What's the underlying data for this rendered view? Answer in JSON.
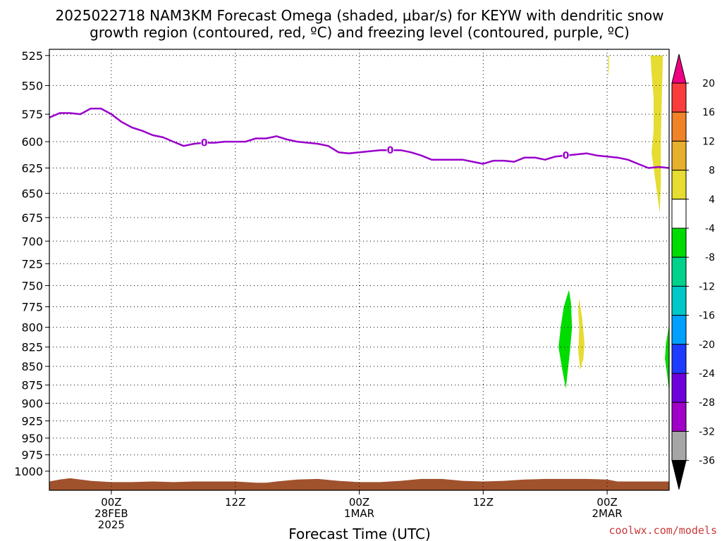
{
  "title_line1": "2025022718 NAM3KM Forecast Omega (shaded, μbar/s) for KEYW with dendritic snow",
  "title_line2": "growth region (contoured, red, ºC) and freezing level (contoured, purple, ºC)",
  "credit": "coolwx.com/models",
  "colors": {
    "freezing_level": "#9900cc",
    "terrain": "#a0522d",
    "grid": "#000000"
  },
  "chart_data": {
    "type": "area",
    "title": "2025022718 NAM3KM Forecast Omega (shaded, μbar/s) for KEYW with dendritic snow growth region (contoured, red, ºC) and freezing level (contoured, purple, ºC)",
    "xlabel": "Forecast Time (UTC)",
    "ylabel": "",
    "x_unit": "forecast hour from 2025-02-27 18Z",
    "xlim": [
      0,
      60
    ],
    "ylim": [
      1000,
      525
    ],
    "y_scale": "log (pressure, hPa)",
    "grid": true,
    "y_ticks": [
      525,
      550,
      575,
      600,
      625,
      650,
      675,
      700,
      725,
      750,
      775,
      800,
      825,
      850,
      875,
      900,
      925,
      950,
      975,
      1000
    ],
    "x_ticks": [
      {
        "x": 6,
        "lines": [
          "00Z",
          "28FEB",
          "2025"
        ]
      },
      {
        "x": 18,
        "lines": [
          "12Z"
        ]
      },
      {
        "x": 30,
        "lines": [
          "00Z",
          "1MAR"
        ]
      },
      {
        "x": 42,
        "lines": [
          "12Z"
        ]
      },
      {
        "x": 54,
        "lines": [
          "00Z",
          "2MAR"
        ]
      }
    ],
    "freezing_level": {
      "label": "0",
      "label_x": [
        15,
        33,
        50
      ],
      "x": [
        0,
        1,
        2,
        3,
        4,
        5,
        6,
        7,
        8,
        9,
        10,
        11,
        12,
        13,
        14,
        15,
        16,
        17,
        18,
        19,
        20,
        21,
        22,
        23,
        24,
        25,
        26,
        27,
        28,
        29,
        30,
        31,
        32,
        33,
        34,
        35,
        36,
        37,
        38,
        39,
        40,
        41,
        42,
        43,
        44,
        45,
        46,
        47,
        48,
        49,
        50,
        51,
        52,
        53,
        54,
        55,
        56,
        57,
        58,
        59,
        60
      ],
      "y": [
        578,
        574,
        574,
        575,
        570,
        570,
        575,
        582,
        587,
        590,
        594,
        596,
        600,
        604,
        602,
        601,
        601,
        600,
        600,
        600,
        597,
        597,
        595,
        598,
        600,
        601,
        602,
        604,
        610,
        611,
        610,
        609,
        608,
        608,
        608,
        610,
        613,
        617,
        617,
        617,
        617,
        619,
        621,
        618,
        618,
        619,
        615,
        615,
        617,
        614,
        613,
        612,
        611,
        613,
        614,
        615,
        617,
        621,
        625,
        624,
        625
      ]
    },
    "omega_levels": [
      -36,
      -32,
      -28,
      -24,
      -20,
      -16,
      -12,
      -8,
      -4,
      4,
      8,
      12,
      16,
      20
    ],
    "omega_colors": [
      "#a6a6a6",
      "#a000c8",
      "#6e00dc",
      "#1e3cff",
      "#00a0ff",
      "#00c8c8",
      "#00d28c",
      "#00dc00",
      "#ffffff",
      "#e6dc32",
      "#e6af2d",
      "#f08228",
      "#fa3c3c",
      "#f00082"
    ],
    "omega_regions": [
      {
        "name": "yellow",
        "color": "#e6dc32",
        "vertices": [
          [
            54.1,
            525
          ],
          [
            54.2,
            525
          ],
          [
            54.2,
            535
          ],
          [
            54.1,
            543
          ],
          [
            54.1,
            532
          ]
        ]
      },
      {
        "name": "yellow",
        "color": "#e6dc32",
        "vertices": [
          [
            58.2,
            525
          ],
          [
            59.4,
            525
          ],
          [
            59.3,
            560
          ],
          [
            59.2,
            600
          ],
          [
            59.2,
            640
          ],
          [
            59.1,
            670
          ],
          [
            58.9,
            655
          ],
          [
            58.5,
            625
          ],
          [
            58.3,
            610
          ],
          [
            58.5,
            590
          ],
          [
            58.5,
            560
          ],
          [
            58.3,
            540
          ]
        ]
      },
      {
        "name": "green",
        "color": "#00dc00",
        "vertices": [
          [
            50.3,
            755
          ],
          [
            50.5,
            770
          ],
          [
            50.6,
            800
          ],
          [
            50.4,
            830
          ],
          [
            50.2,
            855
          ],
          [
            50.0,
            880
          ],
          [
            49.6,
            850
          ],
          [
            49.3,
            825
          ],
          [
            49.5,
            800
          ],
          [
            49.8,
            775
          ]
        ]
      },
      {
        "name": "yellow",
        "color": "#e6dc32",
        "vertices": [
          [
            51.3,
            765
          ],
          [
            51.6,
            790
          ],
          [
            51.8,
            820
          ],
          [
            51.7,
            840
          ],
          [
            51.4,
            855
          ],
          [
            51.2,
            830
          ],
          [
            51.3,
            800
          ],
          [
            51.2,
            780
          ]
        ]
      },
      {
        "name": "green",
        "color": "#00dc00",
        "vertices": [
          [
            60,
            795
          ],
          [
            60,
            885
          ],
          [
            59.8,
            860
          ],
          [
            59.6,
            840
          ],
          [
            59.7,
            820
          ],
          [
            59.9,
            805
          ]
        ]
      }
    ],
    "terrain": {
      "x": [
        0,
        1,
        2,
        4,
        6,
        8,
        10,
        12,
        14,
        16,
        18,
        19,
        20,
        21,
        22,
        24,
        26,
        28,
        30,
        32,
        34,
        36,
        38,
        40,
        42,
        44,
        46,
        48,
        50,
        52,
        54,
        55,
        56,
        58,
        60
      ],
      "y": [
        1016,
        1013,
        1011,
        1015,
        1017,
        1017,
        1016,
        1017,
        1016,
        1016,
        1016,
        1017,
        1018,
        1018,
        1016,
        1013,
        1012,
        1015,
        1017,
        1017,
        1015,
        1012,
        1012,
        1015,
        1016,
        1015,
        1013,
        1012,
        1012,
        1012,
        1013,
        1016,
        1016,
        1016,
        1016
      ]
    }
  }
}
